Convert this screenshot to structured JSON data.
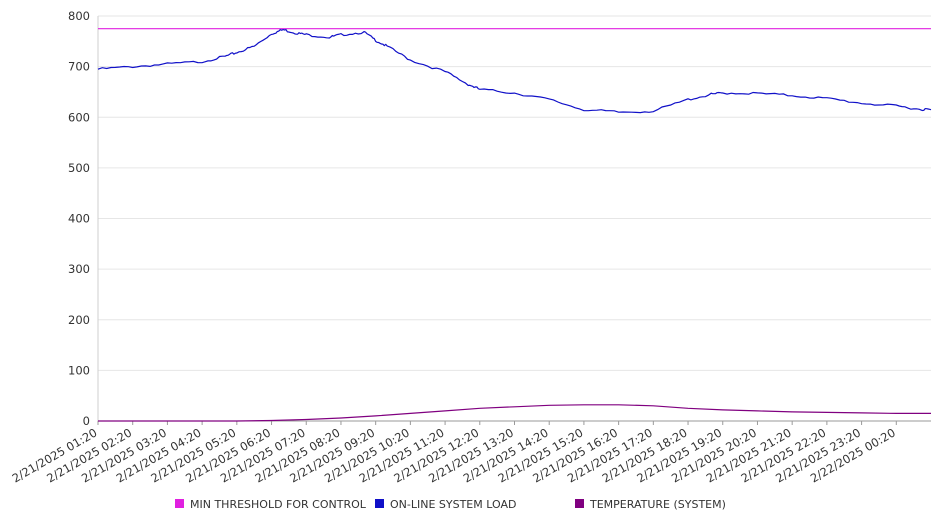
{
  "chart_data": {
    "type": "line",
    "title": "",
    "xlabel": "",
    "ylabel": "",
    "ylim": [
      0,
      800
    ],
    "y_ticks": [
      0,
      100,
      200,
      300,
      400,
      500,
      600,
      700,
      800
    ],
    "grid": "horizontal",
    "legend_position": "bottom",
    "x_tick_labels": [
      "2/21/2025 01:20",
      "2/21/2025 02:20",
      "2/21/2025 03:20",
      "2/21/2025 04:20",
      "2/21/2025 05:20",
      "2/21/2025 06:20",
      "2/21/2025 07:20",
      "2/21/2025 08:20",
      "2/21/2025 09:20",
      "2/21/2025 10:20",
      "2/21/2025 11:20",
      "2/21/2025 12:20",
      "2/21/2025 13:20",
      "2/21/2025 14:20",
      "2/21/2025 15:20",
      "2/21/2025 16:20",
      "2/21/2025 17:20",
      "2/21/2025 18:20",
      "2/21/2025 19:20",
      "2/21/2025 20:20",
      "2/21/2025 21:20",
      "2/21/2025 22:20",
      "2/21/2025 23:20",
      "2/22/2025 00:20"
    ],
    "x_range": [
      "2/21/2025 01:20",
      "2/22/2025 01:20"
    ],
    "series": [
      {
        "name": "MIN THRESHOLD FOR CONTROL",
        "color": "#e020e0",
        "x": [
          "2/21/2025 01:20",
          "2/22/2025 01:20"
        ],
        "y": [
          775,
          775
        ]
      },
      {
        "name": "ON-LINE SYSTEM LOAD",
        "color": "#1010c8",
        "x": [
          "2/21/2025 01:20",
          "2/21/2025 02:20",
          "2/21/2025 03:20",
          "2/21/2025 04:20",
          "2/21/2025 05:00",
          "2/21/2025 05:20",
          "2/21/2025 05:50",
          "2/21/2025 06:20",
          "2/21/2025 06:40",
          "2/21/2025 07:00",
          "2/21/2025 07:20",
          "2/21/2025 08:00",
          "2/21/2025 08:20",
          "2/21/2025 09:00",
          "2/21/2025 09:20",
          "2/21/2025 09:40",
          "2/21/2025 10:20",
          "2/21/2025 11:20",
          "2/21/2025 12:00",
          "2/21/2025 12:20",
          "2/21/2025 13:20",
          "2/21/2025 14:20",
          "2/21/2025 15:20",
          "2/21/2025 16:20",
          "2/21/2025 17:20",
          "2/21/2025 18:20",
          "2/21/2025 19:00",
          "2/21/2025 19:20",
          "2/21/2025 20:20",
          "2/21/2025 21:20",
          "2/21/2025 22:20",
          "2/21/2025 23:20",
          "2/22/2025 00:20",
          "2/22/2025 01:00",
          "2/22/2025 01:20"
        ],
        "y": [
          695,
          700,
          705,
          710,
          720,
          728,
          740,
          765,
          773,
          767,
          763,
          758,
          763,
          768,
          752,
          740,
          713,
          690,
          665,
          655,
          648,
          635,
          615,
          610,
          612,
          635,
          645,
          648,
          647,
          643,
          637,
          628,
          622,
          616,
          615
        ]
      },
      {
        "name": "TEMPERATURE (SYSTEM)",
        "color": "#800080",
        "x": [
          "2/21/2025 01:20",
          "2/21/2025 03:20",
          "2/21/2025 05:20",
          "2/21/2025 06:20",
          "2/21/2025 07:20",
          "2/21/2025 08:20",
          "2/21/2025 09:20",
          "2/21/2025 10:20",
          "2/21/2025 11:20",
          "2/21/2025 12:20",
          "2/21/2025 13:20",
          "2/21/2025 14:20",
          "2/21/2025 15:20",
          "2/21/2025 16:20",
          "2/21/2025 17:20",
          "2/21/2025 18:20",
          "2/21/2025 19:20",
          "2/21/2025 20:20",
          "2/21/2025 21:20",
          "2/21/2025 22:20",
          "2/21/2025 23:20",
          "2/22/2025 00:20",
          "2/22/2025 01:20"
        ],
        "y": [
          0,
          0,
          0,
          1,
          3,
          6,
          10,
          15,
          20,
          25,
          28,
          31,
          32,
          32,
          30,
          25,
          22,
          20,
          18,
          17,
          16,
          15,
          15
        ]
      }
    ]
  }
}
